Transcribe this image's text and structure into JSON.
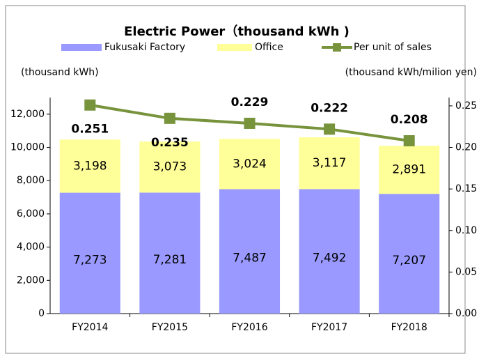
{
  "chart_data": {
    "type": "bar",
    "title": "Electric Power（thousand kWh )",
    "y_label": "(thousand  kWh)",
    "y2_label": "(thousand kWh/milion yen)",
    "categories": [
      "FY2014",
      "FY2015",
      "FY2016",
      "FY2017",
      "FY2018"
    ],
    "series": [
      {
        "name": "Fukusaki Factory",
        "color": "#9999ff",
        "values": [
          7273,
          7281,
          7487,
          7492,
          7207
        ],
        "value_labels": [
          "7,273",
          "7,281",
          "7,487",
          "7,492",
          "7,207"
        ]
      },
      {
        "name": "Office",
        "color": "#ffff99",
        "values": [
          3198,
          3073,
          3024,
          3117,
          2891
        ],
        "value_labels": [
          "3,198",
          "3,073",
          "3,024",
          "3,117",
          "2,891"
        ]
      },
      {
        "name": "Per unit of sales",
        "color": "#77933c",
        "type": "line",
        "axis": "y2",
        "values": [
          0.251,
          0.235,
          0.229,
          0.222,
          0.208
        ]
      }
    ],
    "ylim": [
      0,
      13000
    ],
    "yticks": [
      0,
      {
        "value": 2000,
        "label": "2,000"
      },
      {
        "value": 4000,
        "label": "4,000"
      },
      {
        "value": 6000,
        "label": "6,000"
      },
      {
        "value": 8000,
        "label": "8,000"
      },
      {
        "value": 10000,
        "label": "10,000"
      },
      {
        "value": 12000,
        "label": "12,000"
      }
    ],
    "y2lim": [
      0,
      0.26
    ],
    "y2ticks": [
      {
        "value": 0,
        "label": "0.00"
      },
      {
        "value": 0.05,
        "label": "0.05"
      },
      {
        "value": 0.1,
        "label": "0.10"
      },
      {
        "value": 0.15,
        "label": "0.15"
      },
      {
        "value": 0.2,
        "label": "0.20"
      },
      {
        "value": 0.25,
        "label": "0.25"
      }
    ],
    "legend": "top"
  }
}
